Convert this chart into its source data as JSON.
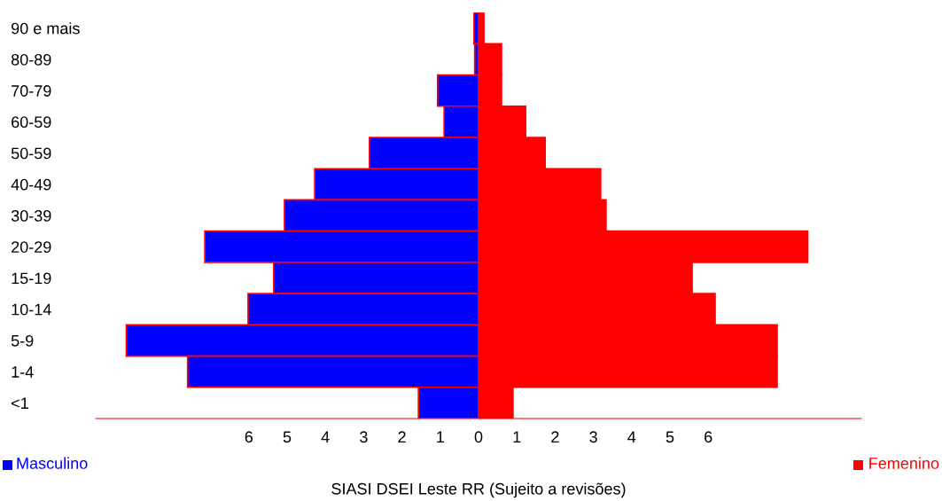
{
  "chart_data": {
    "type": "bar",
    "orientation": "horizontal",
    "categories": [
      "90 e mais",
      "80-89",
      "70-79",
      "60-59",
      "50-59",
      "40-49",
      "30-39",
      "20-29",
      "15-19",
      "10-14",
      "5-9",
      "1-4",
      "<1"
    ],
    "series": [
      {
        "name": "Masculino",
        "color": "#0000ff",
        "values": [
          -0.12,
          -0.1,
          -1.07,
          -0.9,
          -2.85,
          -4.28,
          -5.07,
          -7.15,
          -5.35,
          -6.02,
          -9.2,
          -7.6,
          -1.57
        ]
      },
      {
        "name": "Femenino",
        "color": "#ff0000",
        "values": [
          0.14,
          0.6,
          0.6,
          1.23,
          1.74,
          3.19,
          3.33,
          8.6,
          5.58,
          6.18,
          7.8,
          7.8,
          0.9
        ]
      }
    ],
    "xlim": [
      -10,
      10
    ],
    "xticks": [
      {
        "value": -6,
        "label": "6"
      },
      {
        "value": -5,
        "label": "5"
      },
      {
        "value": -4,
        "label": "4"
      },
      {
        "value": -3,
        "label": "3"
      },
      {
        "value": -2,
        "label": "2"
      },
      {
        "value": -1,
        "label": "1"
      },
      0,
      1,
      2,
      3,
      4,
      5,
      6
    ],
    "xlabel": "SIASI DSEI Leste RR (Sujeito a revisões)",
    "grid": false,
    "legend": "bottom",
    "stacked": true
  }
}
